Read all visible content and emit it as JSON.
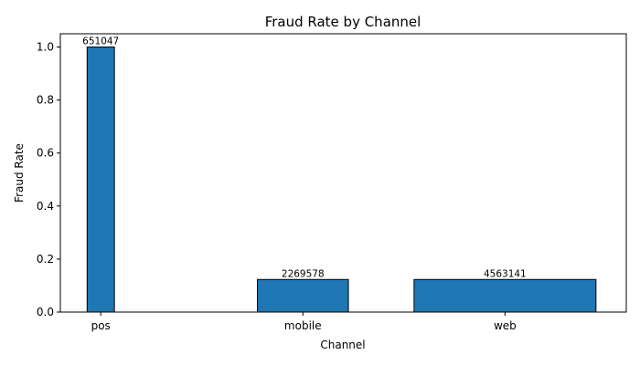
{
  "chart_data": {
    "type": "bar",
    "title": "Fraud Rate by Channel",
    "xlabel": "Channel",
    "ylabel": "Fraud Rate",
    "categories": [
      "pos",
      "mobile",
      "web"
    ],
    "values": [
      1.0,
      0.123,
      0.123
    ],
    "data_labels": [
      "651047",
      "2269578",
      "4563141"
    ],
    "bar_widths_relative": [
      0.15,
      0.5,
      1.0
    ],
    "x_positions": [
      0,
      1,
      2
    ],
    "ylim": [
      0,
      1.05
    ],
    "yticks": [
      0.0,
      0.2,
      0.4,
      0.6,
      0.8,
      1.0
    ],
    "ytick_labels": [
      "0.0",
      "0.2",
      "0.4",
      "0.6",
      "0.8",
      "1.0"
    ],
    "grid": false,
    "bar_color": "#1f77b4",
    "edge_color": "#000000"
  }
}
